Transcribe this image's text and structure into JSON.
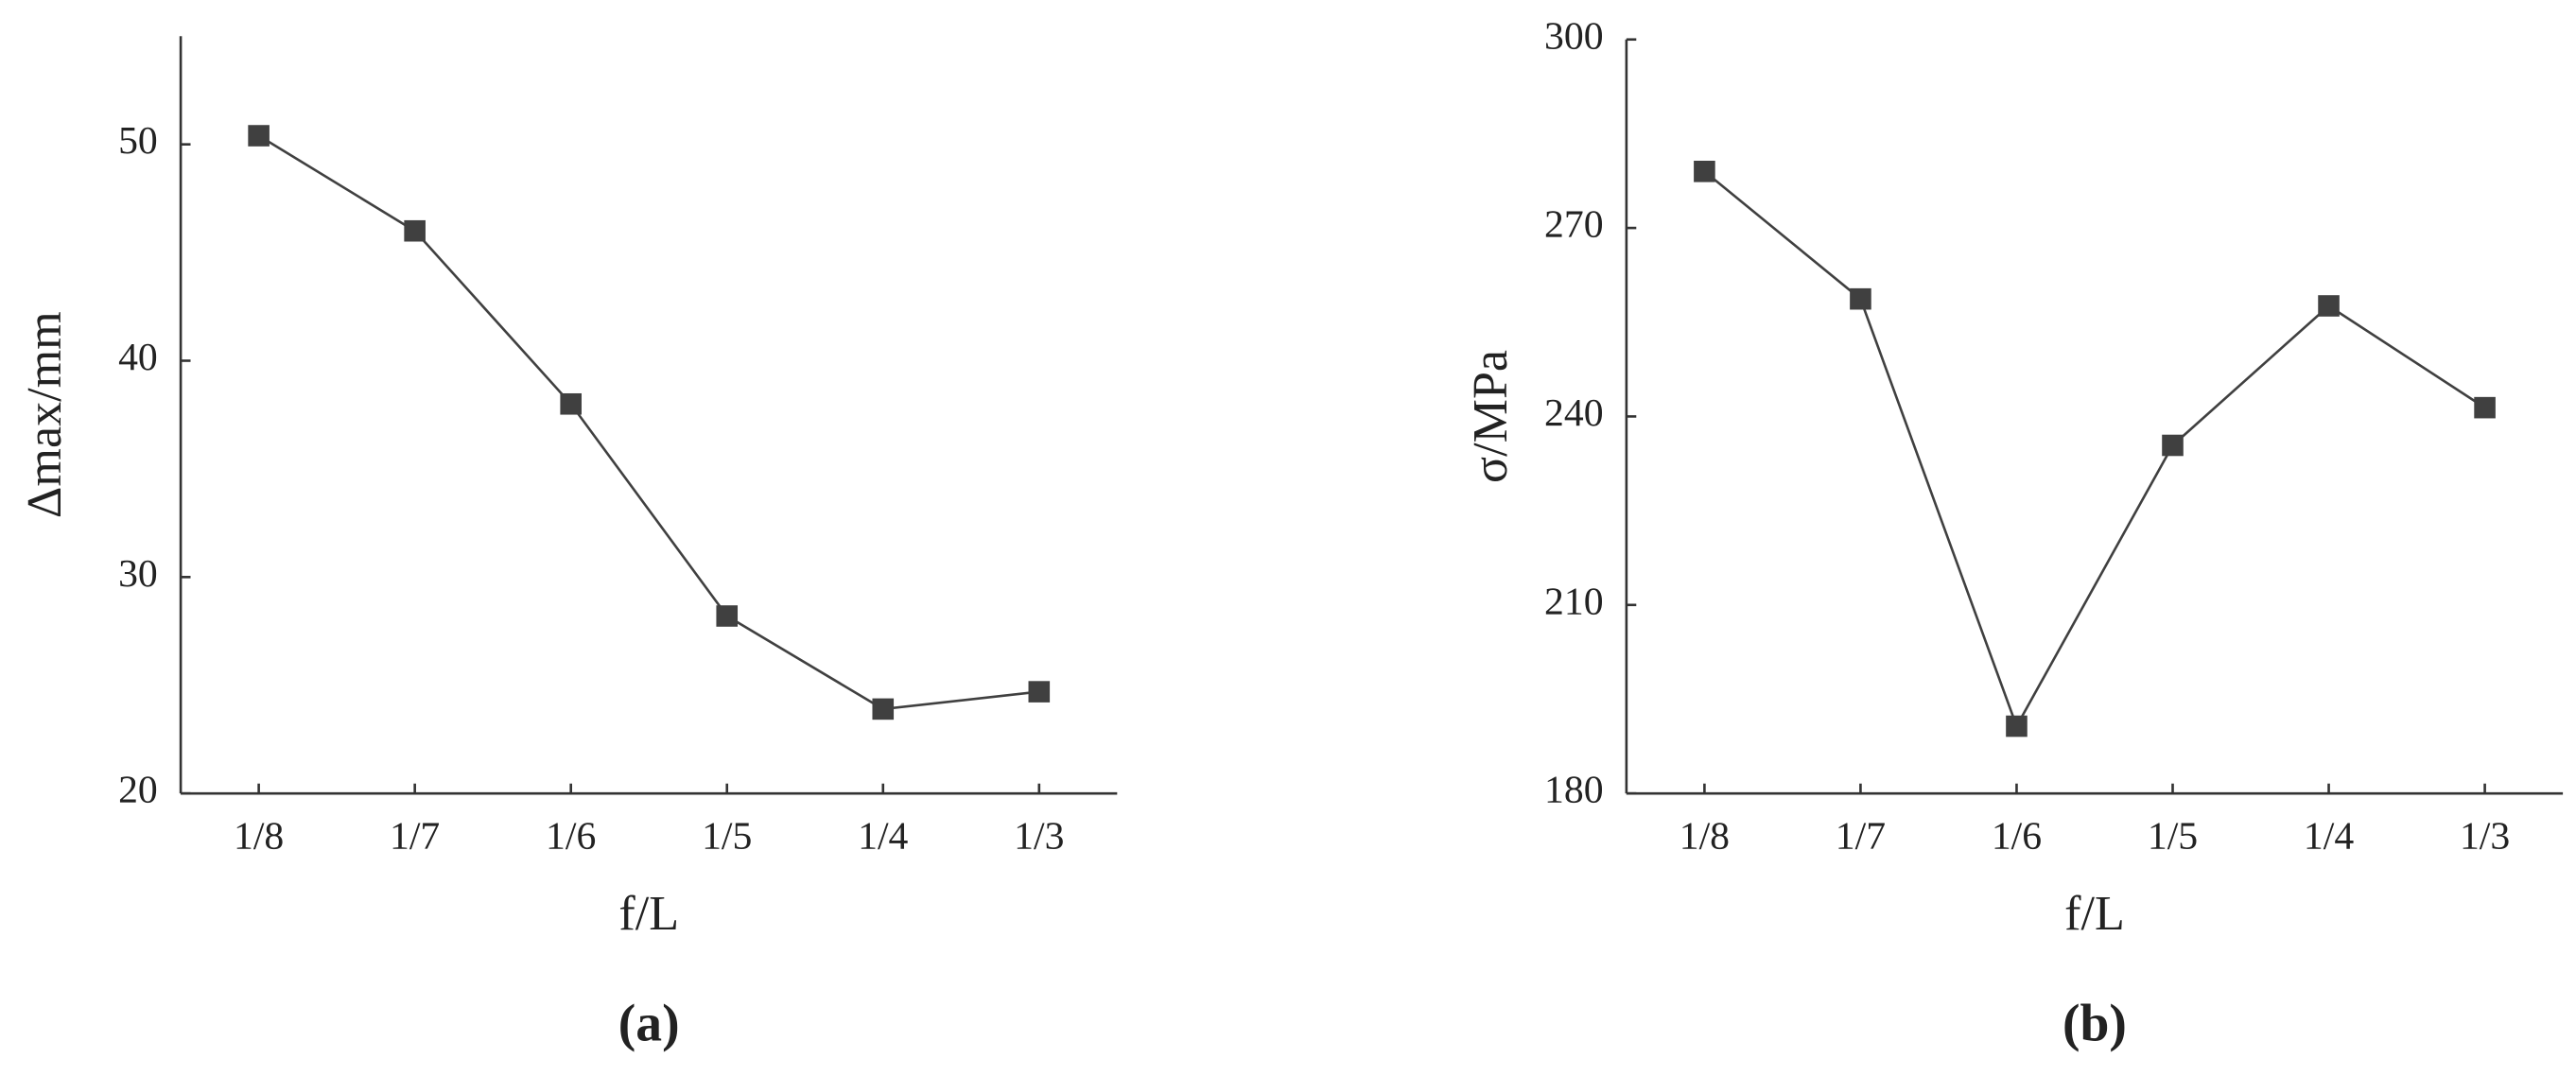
{
  "chart_data": [
    {
      "type": "line",
      "label": "(a)",
      "xlabel": "f/L",
      "ylabel": "Δmax/mm",
      "categories": [
        "1/8",
        "1/7",
        "1/6",
        "1/5",
        "1/4",
        "1/3"
      ],
      "series": [
        {
          "color": "#404040",
          "values": [
            50.4,
            46.0,
            38.0,
            28.2,
            23.9,
            24.7
          ]
        }
      ],
      "ylim": [
        20,
        55
      ],
      "yticks": [
        20,
        30,
        40,
        50
      ]
    },
    {
      "type": "line",
      "label": "(b)",
      "xlabel": "f/L",
      "ylabel": "σ/MPa",
      "categories": [
        "1/8",
        "1/7",
        "1/6",
        "1/5",
        "1/4",
        "1/3"
      ],
      "series": [
        {
          "color": "#404040",
          "values": [
            279,
            258.7,
            190.7,
            235.4,
            257.6,
            241.4
          ]
        }
      ],
      "ylim": [
        180,
        300
      ],
      "yticks": [
        180,
        210,
        240,
        270,
        300
      ]
    }
  ]
}
